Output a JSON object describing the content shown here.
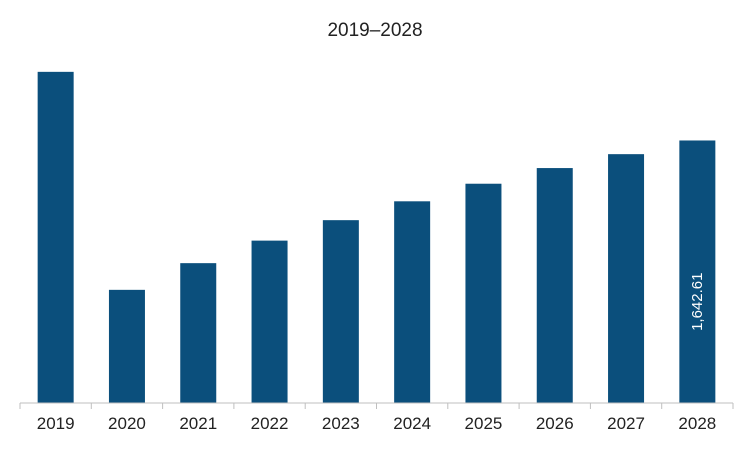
{
  "chart_data": {
    "type": "bar",
    "title": "2019–2028",
    "xlabel": "",
    "ylabel": "",
    "categories": [
      "2019",
      "2020",
      "2021",
      "2022",
      "2023",
      "2024",
      "2025",
      "2026",
      "2027",
      "2028"
    ],
    "values": [
      2072,
      708,
      875,
      1016,
      1144,
      1262,
      1372,
      1470,
      1557,
      1642.61
    ],
    "ylim": [
      0,
      2240
    ],
    "grid": false,
    "legend": "none",
    "bar_color": "#0b4f7c",
    "data_labels": [
      {
        "category": "2028",
        "text": "1,642.61"
      }
    ]
  }
}
